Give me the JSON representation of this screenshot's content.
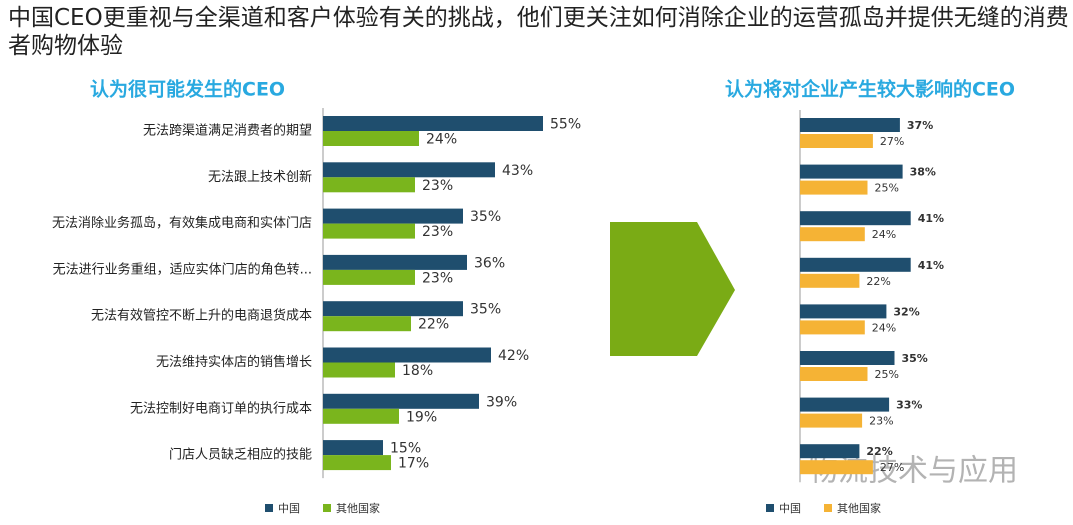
{
  "title": "中国CEO更重视与全渠道和客户体验有关的挑战，他们更关注如何消除企业的运营孤岛并提供无缝的消费者购物体验",
  "watermark": "物流技术与应用",
  "chart_data": [
    {
      "type": "bar",
      "orientation": "horizontal",
      "title": "认为很可能发生的CEO",
      "categories": [
        "无法跨渠道满足消费者的期望",
        "无法跟上技术创新",
        "无法消除业务孤岛，有效集成电商和实体门店",
        "无法进行业务重组，适应实体门店的角色转...",
        "无法有效管控不断上升的电商退货成本",
        "无法维持实体店的销售增长",
        "无法控制好电商订单的执行成本",
        "门店人员缺乏相应的技能"
      ],
      "series": [
        {
          "name": "中国",
          "color": "#1f4e6e",
          "values": [
            55,
            43,
            35,
            36,
            35,
            42,
            39,
            15
          ],
          "value_labels": [
            "55%",
            "43%",
            "35%",
            "36%",
            "35%",
            "42%",
            "39%",
            "15%"
          ]
        },
        {
          "name": "其他国家",
          "color": "#7ab51d",
          "values": [
            24,
            23,
            23,
            23,
            22,
            18,
            19,
            17
          ],
          "value_labels": [
            "24%",
            "23%",
            "23%",
            "23%",
            "22%",
            "18%",
            "19%",
            "17%"
          ]
        }
      ],
      "xlim": [
        0,
        65
      ],
      "legend": "bottom"
    },
    {
      "type": "bar",
      "orientation": "horizontal",
      "title": "认为将对企业产生较大影响的CEO",
      "categories": [
        null,
        null,
        null,
        null,
        null,
        null,
        null,
        null
      ],
      "series": [
        {
          "name": "中国",
          "color": "#1f4e6e",
          "values": [
            37,
            38,
            41,
            41,
            32,
            35,
            33,
            22
          ],
          "value_labels": [
            "37%",
            "38%",
            "41%",
            "41%",
            "32%",
            "35%",
            "33%",
            "22%"
          ]
        },
        {
          "name": "其他国家",
          "color": "#f5b335",
          "values": [
            27,
            25,
            24,
            22,
            24,
            25,
            23,
            27
          ],
          "value_labels": [
            "27%",
            "25%",
            "24%",
            "22%",
            "24%",
            "25%",
            "23%",
            "27%"
          ]
        }
      ],
      "xlim": [
        0,
        100
      ],
      "legend": "bottom"
    }
  ]
}
